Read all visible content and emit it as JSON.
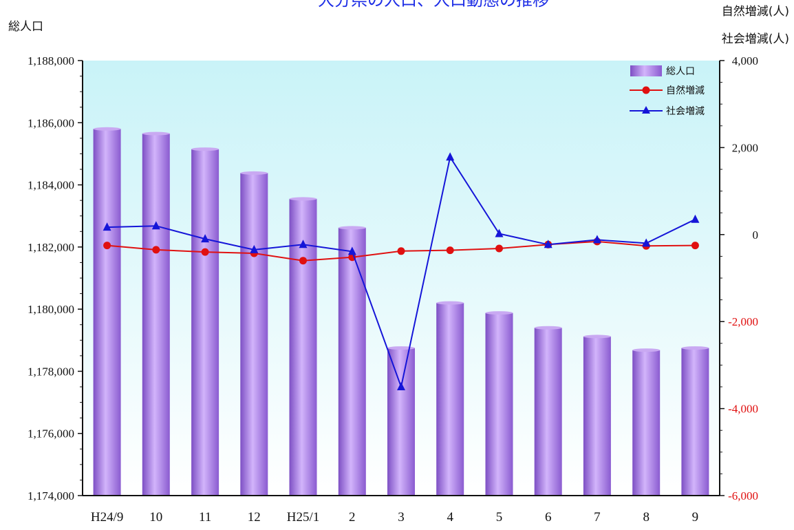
{
  "chart_data": {
    "type": "bar+line",
    "title": "大分県の人口、人口動態の推移",
    "y_left_title": "総人口",
    "y_right_title_1": "自然増減(人)",
    "y_right_title_2": "社会増減(人)",
    "categories": [
      "H24/9",
      "10",
      "11",
      "12",
      "H25/1",
      "2",
      "3",
      "4",
      "5",
      "6",
      "7",
      "8",
      "9"
    ],
    "y_left": {
      "min": 1174000,
      "max": 1188000,
      "ticks": [
        1174000,
        1176000,
        1178000,
        1180000,
        1182000,
        1184000,
        1186000,
        1188000
      ],
      "tick_labels": [
        "1,174,000",
        "1,176,000",
        "1,178,000",
        "1,180,000",
        "1,182,000",
        "1,184,000",
        "1,186,000",
        "1,188,000"
      ]
    },
    "y_right": {
      "min": -6000,
      "max": 4000,
      "ticks": [
        -6000,
        -4000,
        -2000,
        0,
        2000,
        4000
      ],
      "tick_labels": [
        "-6,000",
        "-4,000",
        "-2,000",
        "0",
        "2,000",
        "4,000"
      ],
      "negative_color": "#e01010",
      "positive_color": "#111111"
    },
    "series": [
      {
        "name": "総人口",
        "kind": "bar",
        "axis": "left",
        "color": "#a87be0",
        "values": [
          1185800,
          1185650,
          1185150,
          1184380,
          1183550,
          1182620,
          1178750,
          1180200,
          1179880,
          1179400,
          1179120,
          1178680,
          1178750
        ]
      },
      {
        "name": "自然増減",
        "kind": "line",
        "axis": "right",
        "color": "#e01010",
        "marker": "circle",
        "values": [
          -250,
          -350,
          -400,
          -430,
          -600,
          -520,
          -380,
          -360,
          -320,
          -230,
          -160,
          -260,
          -250
        ]
      },
      {
        "name": "社会増減",
        "kind": "line",
        "axis": "right",
        "color": "#1515d8",
        "marker": "triangle",
        "values": [
          170,
          200,
          -100,
          -350,
          -230,
          -390,
          -3500,
          1780,
          20,
          -230,
          -120,
          -200,
          350
        ]
      }
    ],
    "plot_background": "#cff5f8",
    "grid": false,
    "legend_position": "top-right"
  }
}
